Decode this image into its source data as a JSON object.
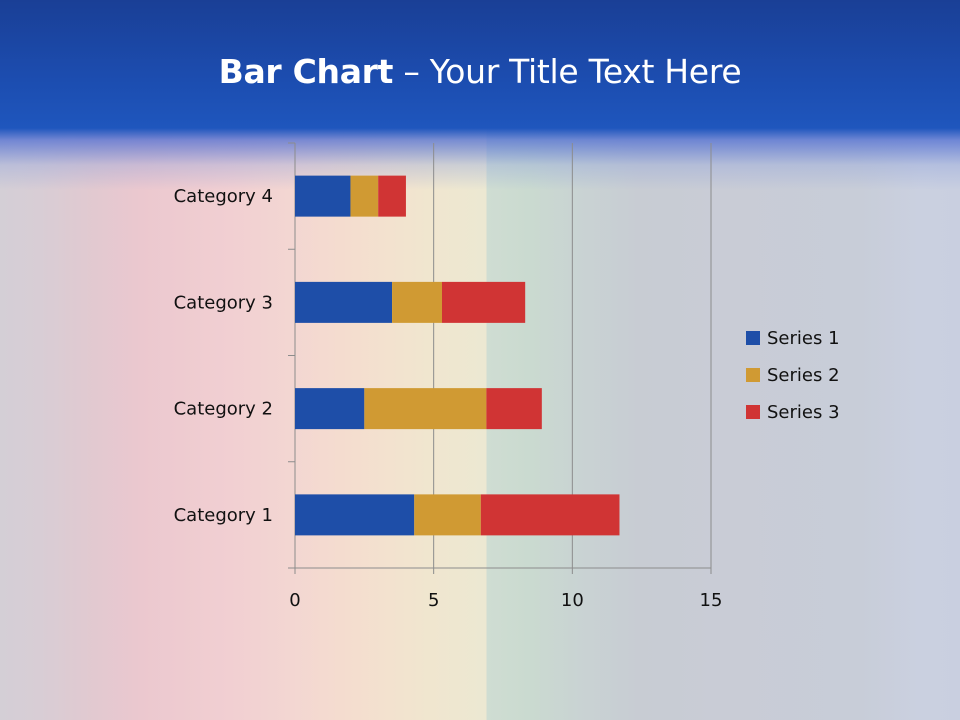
{
  "slide": {
    "title_bold": "Bar Chart",
    "title_sep": " – ",
    "title_rest": "Your Title Text Here"
  },
  "chart_data": {
    "type": "bar",
    "orientation": "horizontal",
    "stacked": true,
    "categories": [
      "Category 1",
      "Category 2",
      "Category 3",
      "Category 4"
    ],
    "series": [
      {
        "name": "Series 1",
        "color": "#1e4ea8",
        "values": [
          4.3,
          2.5,
          3.5,
          2.0
        ]
      },
      {
        "name": "Series 2",
        "color": "#d09a33",
        "values": [
          2.4,
          4.4,
          1.8,
          1.0
        ]
      },
      {
        "name": "Series 3",
        "color": "#d03434",
        "values": [
          5.0,
          2.0,
          3.0,
          1.0
        ]
      }
    ],
    "xlim": [
      0,
      15
    ],
    "xticks": [
      0,
      5,
      10,
      15
    ],
    "grid": true,
    "legend": "right"
  }
}
